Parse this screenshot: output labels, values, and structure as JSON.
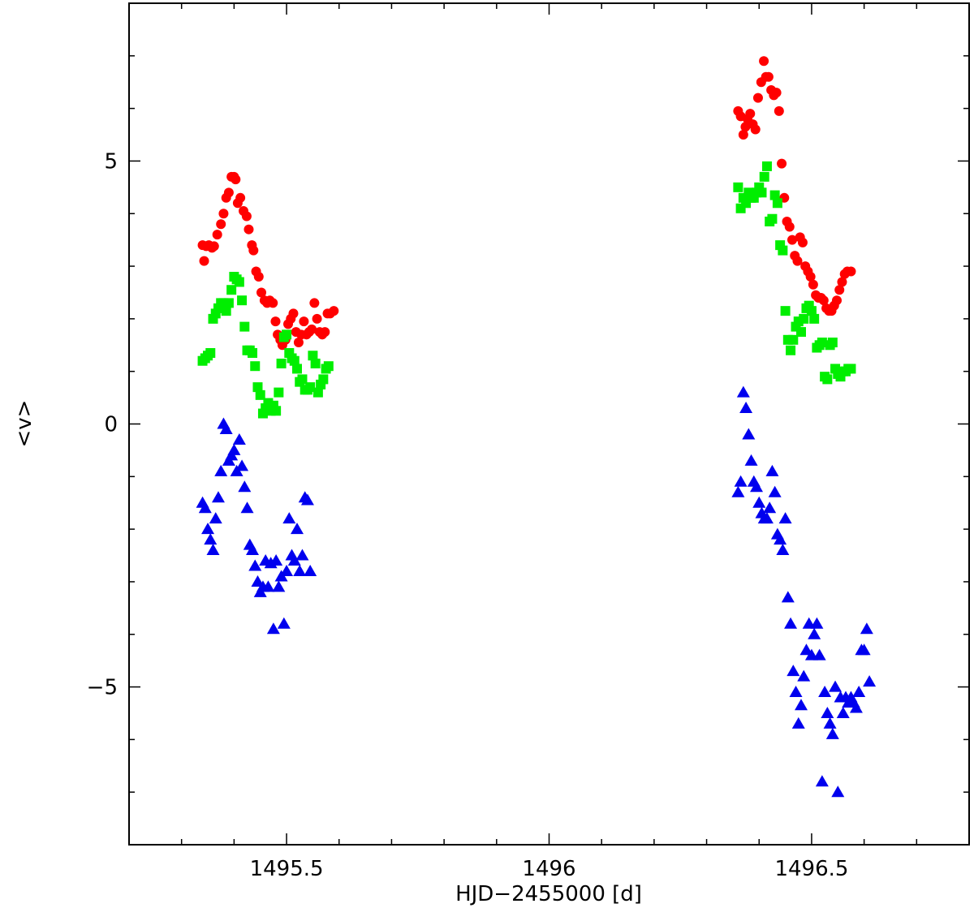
{
  "chart_data": {
    "type": "scatter",
    "title": "",
    "xlabel": "HJD−2455000 [d]",
    "ylabel": "<v>",
    "xlim": [
      1495.2,
      1496.8
    ],
    "ylim": [
      -8,
      8
    ],
    "x_ticks": [
      1495.5,
      1496,
      1496.5
    ],
    "x_tick_labels": [
      "1495.5",
      "1496",
      "1496.5"
    ],
    "y_ticks": [
      -5,
      0,
      5
    ],
    "y_tick_labels": [
      "−5",
      "0",
      "5"
    ],
    "grid": false,
    "series": [
      {
        "marker": "circle",
        "color": "#ff0000",
        "points": [
          [
            1495.34,
            3.4
          ],
          [
            1495.343,
            3.1
          ],
          [
            1495.347,
            3.38
          ],
          [
            1495.352,
            3.4
          ],
          [
            1495.358,
            3.35
          ],
          [
            1495.362,
            3.38
          ],
          [
            1495.368,
            3.6
          ],
          [
            1495.375,
            3.8
          ],
          [
            1495.38,
            4.0
          ],
          [
            1495.385,
            4.3
          ],
          [
            1495.39,
            4.4
          ],
          [
            1495.395,
            4.7
          ],
          [
            1495.4,
            4.7
          ],
          [
            1495.403,
            4.65
          ],
          [
            1495.407,
            4.2
          ],
          [
            1495.412,
            4.3
          ],
          [
            1495.418,
            4.05
          ],
          [
            1495.424,
            3.95
          ],
          [
            1495.428,
            3.7
          ],
          [
            1495.434,
            3.4
          ],
          [
            1495.437,
            3.3
          ],
          [
            1495.442,
            2.9
          ],
          [
            1495.447,
            2.8
          ],
          [
            1495.452,
            2.5
          ],
          [
            1495.458,
            2.35
          ],
          [
            1495.463,
            2.3
          ],
          [
            1495.468,
            2.35
          ],
          [
            1495.474,
            2.3
          ],
          [
            1495.479,
            1.95
          ],
          [
            1495.483,
            1.7
          ],
          [
            1495.488,
            1.6
          ],
          [
            1495.492,
            1.5
          ],
          [
            1495.498,
            1.6
          ],
          [
            1495.503,
            1.9
          ],
          [
            1495.508,
            2.0
          ],
          [
            1495.513,
            2.1
          ],
          [
            1495.518,
            1.75
          ],
          [
            1495.523,
            1.55
          ],
          [
            1495.528,
            1.7
          ],
          [
            1495.533,
            1.95
          ],
          [
            1495.538,
            1.7
          ],
          [
            1495.543,
            1.75
          ],
          [
            1495.548,
            1.8
          ],
          [
            1495.553,
            2.3
          ],
          [
            1495.558,
            2.0
          ],
          [
            1495.563,
            1.75
          ],
          [
            1495.568,
            1.7
          ],
          [
            1495.573,
            1.75
          ],
          [
            1495.578,
            2.1
          ],
          [
            1495.583,
            2.1
          ],
          [
            1495.59,
            2.15
          ],
          [
            1496.36,
            5.95
          ],
          [
            1496.365,
            5.85
          ],
          [
            1496.37,
            5.5
          ],
          [
            1496.374,
            5.65
          ],
          [
            1496.378,
            5.8
          ],
          [
            1496.383,
            5.9
          ],
          [
            1496.388,
            5.7
          ],
          [
            1496.393,
            5.6
          ],
          [
            1496.398,
            6.2
          ],
          [
            1496.404,
            6.5
          ],
          [
            1496.409,
            6.9
          ],
          [
            1496.413,
            6.6
          ],
          [
            1496.418,
            6.6
          ],
          [
            1496.423,
            6.35
          ],
          [
            1496.428,
            6.25
          ],
          [
            1496.433,
            6.3
          ],
          [
            1496.438,
            5.95
          ],
          [
            1496.443,
            4.95
          ],
          [
            1496.448,
            4.3
          ],
          [
            1496.453,
            3.85
          ],
          [
            1496.458,
            3.75
          ],
          [
            1496.463,
            3.5
          ],
          [
            1496.468,
            3.2
          ],
          [
            1496.473,
            3.1
          ],
          [
            1496.478,
            3.55
          ],
          [
            1496.483,
            3.45
          ],
          [
            1496.488,
            3.0
          ],
          [
            1496.493,
            2.9
          ],
          [
            1496.498,
            2.8
          ],
          [
            1496.503,
            2.65
          ],
          [
            1496.508,
            2.45
          ],
          [
            1496.513,
            2.4
          ],
          [
            1496.518,
            2.4
          ],
          [
            1496.523,
            2.35
          ],
          [
            1496.528,
            2.2
          ],
          [
            1496.533,
            2.15
          ],
          [
            1496.538,
            2.15
          ],
          [
            1496.543,
            2.25
          ],
          [
            1496.548,
            2.35
          ],
          [
            1496.553,
            2.55
          ],
          [
            1496.558,
            2.7
          ],
          [
            1496.563,
            2.85
          ],
          [
            1496.568,
            2.9
          ],
          [
            1496.575,
            2.9
          ]
        ]
      },
      {
        "marker": "square",
        "color": "#00ee00",
        "points": [
          [
            1495.34,
            1.2
          ],
          [
            1495.345,
            1.25
          ],
          [
            1495.35,
            1.3
          ],
          [
            1495.355,
            1.35
          ],
          [
            1495.36,
            2.0
          ],
          [
            1495.365,
            2.1
          ],
          [
            1495.37,
            2.2
          ],
          [
            1495.375,
            2.3
          ],
          [
            1495.38,
            2.3
          ],
          [
            1495.385,
            2.15
          ],
          [
            1495.39,
            2.3
          ],
          [
            1495.395,
            2.55
          ],
          [
            1495.4,
            2.8
          ],
          [
            1495.405,
            2.75
          ],
          [
            1495.41,
            2.7
          ],
          [
            1495.415,
            2.35
          ],
          [
            1495.42,
            1.85
          ],
          [
            1495.425,
            1.4
          ],
          [
            1495.43,
            1.4
          ],
          [
            1495.435,
            1.35
          ],
          [
            1495.44,
            1.1
          ],
          [
            1495.445,
            0.7
          ],
          [
            1495.45,
            0.55
          ],
          [
            1495.455,
            0.2
          ],
          [
            1495.46,
            0.3
          ],
          [
            1495.465,
            0.4
          ],
          [
            1495.47,
            0.25
          ],
          [
            1495.475,
            0.35
          ],
          [
            1495.48,
            0.25
          ],
          [
            1495.485,
            0.6
          ],
          [
            1495.49,
            1.15
          ],
          [
            1495.495,
            1.65
          ],
          [
            1495.5,
            1.7
          ],
          [
            1495.505,
            1.35
          ],
          [
            1495.51,
            1.25
          ],
          [
            1495.515,
            1.2
          ],
          [
            1495.52,
            1.05
          ],
          [
            1495.525,
            0.8
          ],
          [
            1495.53,
            0.85
          ],
          [
            1495.535,
            0.65
          ],
          [
            1495.54,
            0.65
          ],
          [
            1495.545,
            0.7
          ],
          [
            1495.55,
            1.3
          ],
          [
            1495.555,
            1.15
          ],
          [
            1495.56,
            0.6
          ],
          [
            1495.565,
            0.75
          ],
          [
            1495.57,
            0.85
          ],
          [
            1495.575,
            1.05
          ],
          [
            1495.58,
            1.1
          ],
          [
            1496.36,
            4.5
          ],
          [
            1496.365,
            4.1
          ],
          [
            1496.37,
            4.3
          ],
          [
            1496.375,
            4.2
          ],
          [
            1496.38,
            4.4
          ],
          [
            1496.385,
            4.3
          ],
          [
            1496.39,
            4.3
          ],
          [
            1496.395,
            4.4
          ],
          [
            1496.4,
            4.5
          ],
          [
            1496.405,
            4.4
          ],
          [
            1496.41,
            4.7
          ],
          [
            1496.415,
            4.9
          ],
          [
            1496.42,
            3.85
          ],
          [
            1496.425,
            3.9
          ],
          [
            1496.43,
            4.35
          ],
          [
            1496.435,
            4.2
          ],
          [
            1496.44,
            3.4
          ],
          [
            1496.445,
            3.3
          ],
          [
            1496.45,
            2.15
          ],
          [
            1496.455,
            1.6
          ],
          [
            1496.46,
            1.4
          ],
          [
            1496.465,
            1.6
          ],
          [
            1496.47,
            1.85
          ],
          [
            1496.475,
            1.95
          ],
          [
            1496.48,
            1.75
          ],
          [
            1496.485,
            2.0
          ],
          [
            1496.49,
            2.2
          ],
          [
            1496.495,
            2.25
          ],
          [
            1496.5,
            2.15
          ],
          [
            1496.505,
            2.0
          ],
          [
            1496.51,
            1.45
          ],
          [
            1496.515,
            1.5
          ],
          [
            1496.52,
            1.55
          ],
          [
            1496.525,
            0.9
          ],
          [
            1496.53,
            0.85
          ],
          [
            1496.535,
            1.5
          ],
          [
            1496.54,
            1.55
          ],
          [
            1496.545,
            1.05
          ],
          [
            1496.55,
            0.95
          ],
          [
            1496.555,
            0.9
          ],
          [
            1496.56,
            1.0
          ],
          [
            1496.565,
            1.0
          ],
          [
            1496.57,
            1.05
          ],
          [
            1496.575,
            1.05
          ]
        ]
      },
      {
        "marker": "triangle",
        "color": "#0000ee",
        "points": [
          [
            1495.34,
            -1.5
          ],
          [
            1495.345,
            -1.6
          ],
          [
            1495.35,
            -2.0
          ],
          [
            1495.355,
            -2.2
          ],
          [
            1495.36,
            -2.4
          ],
          [
            1495.365,
            -1.8
          ],
          [
            1495.37,
            -1.4
          ],
          [
            1495.375,
            -0.9
          ],
          [
            1495.38,
            0.0
          ],
          [
            1495.385,
            -0.1
          ],
          [
            1495.39,
            -0.7
          ],
          [
            1495.395,
            -0.6
          ],
          [
            1495.4,
            -0.5
          ],
          [
            1495.405,
            -0.9
          ],
          [
            1495.41,
            -0.3
          ],
          [
            1495.415,
            -0.8
          ],
          [
            1495.42,
            -1.2
          ],
          [
            1495.425,
            -1.6
          ],
          [
            1495.43,
            -2.3
          ],
          [
            1495.435,
            -2.4
          ],
          [
            1495.44,
            -2.7
          ],
          [
            1495.445,
            -3.0
          ],
          [
            1495.45,
            -3.2
          ],
          [
            1495.455,
            -3.1
          ],
          [
            1495.46,
            -2.6
          ],
          [
            1495.465,
            -3.1
          ],
          [
            1495.47,
            -2.65
          ],
          [
            1495.475,
            -3.9
          ],
          [
            1495.48,
            -2.6
          ],
          [
            1495.485,
            -3.1
          ],
          [
            1495.49,
            -2.9
          ],
          [
            1495.495,
            -3.8
          ],
          [
            1495.5,
            -2.8
          ],
          [
            1495.505,
            -1.8
          ],
          [
            1495.51,
            -2.5
          ],
          [
            1495.515,
            -2.6
          ],
          [
            1495.52,
            -2.0
          ],
          [
            1495.525,
            -2.8
          ],
          [
            1495.53,
            -2.5
          ],
          [
            1495.535,
            -1.4
          ],
          [
            1495.54,
            -1.45
          ],
          [
            1495.545,
            -2.8
          ],
          [
            1496.36,
            -1.3
          ],
          [
            1496.365,
            -1.1
          ],
          [
            1496.37,
            0.6
          ],
          [
            1496.375,
            0.3
          ],
          [
            1496.38,
            -0.2
          ],
          [
            1496.385,
            -0.7
          ],
          [
            1496.39,
            -1.1
          ],
          [
            1496.395,
            -1.2
          ],
          [
            1496.4,
            -1.5
          ],
          [
            1496.405,
            -1.7
          ],
          [
            1496.41,
            -1.8
          ],
          [
            1496.415,
            -1.8
          ],
          [
            1496.42,
            -1.6
          ],
          [
            1496.425,
            -0.9
          ],
          [
            1496.43,
            -1.3
          ],
          [
            1496.435,
            -2.1
          ],
          [
            1496.44,
            -2.2
          ],
          [
            1496.445,
            -2.4
          ],
          [
            1496.45,
            -1.8
          ],
          [
            1496.455,
            -3.3
          ],
          [
            1496.46,
            -3.8
          ],
          [
            1496.465,
            -4.7
          ],
          [
            1496.47,
            -5.1
          ],
          [
            1496.475,
            -5.7
          ],
          [
            1496.48,
            -5.35
          ],
          [
            1496.485,
            -4.8
          ],
          [
            1496.49,
            -4.3
          ],
          [
            1496.495,
            -3.8
          ],
          [
            1496.5,
            -4.4
          ],
          [
            1496.505,
            -4.0
          ],
          [
            1496.51,
            -3.8
          ],
          [
            1496.515,
            -4.4
          ],
          [
            1496.52,
            -6.8
          ],
          [
            1496.525,
            -5.1
          ],
          [
            1496.53,
            -5.5
          ],
          [
            1496.535,
            -5.7
          ],
          [
            1496.54,
            -5.9
          ],
          [
            1496.545,
            -5.0
          ],
          [
            1496.55,
            -7.0
          ],
          [
            1496.555,
            -5.2
          ],
          [
            1496.56,
            -5.5
          ],
          [
            1496.565,
            -5.2
          ],
          [
            1496.57,
            -5.3
          ],
          [
            1496.575,
            -5.2
          ],
          [
            1496.58,
            -5.3
          ],
          [
            1496.585,
            -5.4
          ],
          [
            1496.59,
            -5.1
          ],
          [
            1496.595,
            -4.3
          ],
          [
            1496.6,
            -4.3
          ],
          [
            1496.605,
            -3.9
          ],
          [
            1496.61,
            -4.9
          ]
        ]
      }
    ]
  }
}
